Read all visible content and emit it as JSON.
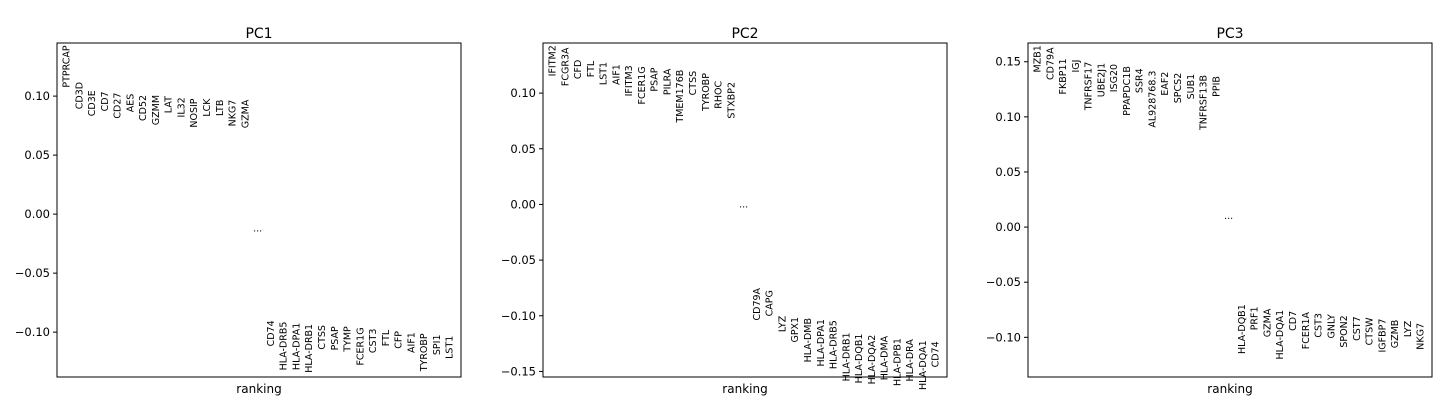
{
  "chart_data": [
    {
      "type": "scatter",
      "title": "PC1",
      "xlabel": "ranking",
      "ylim": [
        -0.138,
        0.145
      ],
      "yticks": [
        "0.10",
        "0.05",
        "0.00",
        "−0.05",
        "−0.10"
      ],
      "ytick_values": [
        0.1,
        0.05,
        0.0,
        -0.05,
        -0.1
      ],
      "gap_label": "...",
      "gap_value": -0.012,
      "top_genes": [
        {
          "label": "PTPRCAP",
          "value": 0.143
        },
        {
          "label": "CD3D",
          "value": 0.112
        },
        {
          "label": "CD3E",
          "value": 0.105
        },
        {
          "label": "CD7",
          "value": 0.104
        },
        {
          "label": "CD27",
          "value": 0.103
        },
        {
          "label": "AES",
          "value": 0.102
        },
        {
          "label": "CD52",
          "value": 0.101
        },
        {
          "label": "GZMM",
          "value": 0.101
        },
        {
          "label": "LAT",
          "value": 0.1
        },
        {
          "label": "IL32",
          "value": 0.099
        },
        {
          "label": "NOSIP",
          "value": 0.098
        },
        {
          "label": "LCK",
          "value": 0.098
        },
        {
          "label": "LTB",
          "value": 0.097
        },
        {
          "label": "NKG7",
          "value": 0.097
        },
        {
          "label": "GZMA",
          "value": 0.097
        }
      ],
      "bottom_genes": [
        {
          "label": "CD74",
          "value": -0.09
        },
        {
          "label": "HLA-DRB5",
          "value": -0.091
        },
        {
          "label": "HLA-DPA1",
          "value": -0.092
        },
        {
          "label": "HLA-DRB1",
          "value": -0.093
        },
        {
          "label": "CTSS",
          "value": -0.094
        },
        {
          "label": "PSAP",
          "value": -0.095
        },
        {
          "label": "TYMP",
          "value": -0.095
        },
        {
          "label": "FCER1G",
          "value": -0.096
        },
        {
          "label": "CST3",
          "value": -0.097
        },
        {
          "label": "FTL",
          "value": -0.098
        },
        {
          "label": "CFP",
          "value": -0.099
        },
        {
          "label": "AIF1",
          "value": -0.1
        },
        {
          "label": "TYROBP",
          "value": -0.101
        },
        {
          "label": "SPI1",
          "value": -0.102
        },
        {
          "label": "LST1",
          "value": -0.103
        }
      ]
    },
    {
      "type": "scatter",
      "title": "PC2",
      "xlabel": "ranking",
      "ylim": [
        -0.155,
        0.145
      ],
      "yticks": [
        "0.10",
        "0.05",
        "0.00",
        "−0.05",
        "−0.10",
        "−0.15"
      ],
      "ytick_values": [
        0.1,
        0.05,
        0.0,
        -0.05,
        -0.1,
        -0.15
      ],
      "gap_label": "...",
      "gap_value": 0.0,
      "top_genes": [
        {
          "label": "IFITM2",
          "value": 0.143
        },
        {
          "label": "FCGR3A",
          "value": 0.141
        },
        {
          "label": "CFD",
          "value": 0.13
        },
        {
          "label": "FTL",
          "value": 0.129
        },
        {
          "label": "LST1",
          "value": 0.128
        },
        {
          "label": "AIF1",
          "value": 0.126
        },
        {
          "label": "IFITM3",
          "value": 0.125
        },
        {
          "label": "FCER1G",
          "value": 0.124
        },
        {
          "label": "PSAP",
          "value": 0.123
        },
        {
          "label": "PILRA",
          "value": 0.122
        },
        {
          "label": "TMEM176B",
          "value": 0.121
        },
        {
          "label": "CTSS",
          "value": 0.12
        },
        {
          "label": "TYROBP",
          "value": 0.118
        },
        {
          "label": "RHOC",
          "value": 0.111
        },
        {
          "label": "STXBP2",
          "value": 0.11
        }
      ],
      "bottom_genes": [
        {
          "label": "CD79A",
          "value": -0.075
        },
        {
          "label": "CAPG",
          "value": -0.077
        },
        {
          "label": "LYZ",
          "value": -0.1
        },
        {
          "label": "GPX1",
          "value": -0.101
        },
        {
          "label": "HLA-DMB",
          "value": -0.102
        },
        {
          "label": "HLA-DPA1",
          "value": -0.103
        },
        {
          "label": "HLA-DRB5",
          "value": -0.104
        },
        {
          "label": "HLA-DRB1",
          "value": -0.115
        },
        {
          "label": "HLA-DQB1",
          "value": -0.116
        },
        {
          "label": "HLA-DQA2",
          "value": -0.117
        },
        {
          "label": "HLA-DMA",
          "value": -0.118
        },
        {
          "label": "HLA-DPB1",
          "value": -0.12
        },
        {
          "label": "HLA-DRA",
          "value": -0.121
        },
        {
          "label": "HLA-DQA1",
          "value": -0.122
        },
        {
          "label": "CD74",
          "value": -0.123
        }
      ]
    },
    {
      "type": "scatter",
      "title": "PC3",
      "xlabel": "ranking",
      "ylim": [
        -0.136,
        0.167
      ],
      "yticks": [
        "0.15",
        "0.10",
        "0.05",
        "0.00",
        "−0.05",
        "−0.10"
      ],
      "ytick_values": [
        0.15,
        0.1,
        0.05,
        0.0,
        -0.05,
        -0.1
      ],
      "gap_label": "...",
      "gap_value": 0.01,
      "top_genes": [
        {
          "label": "MZB1",
          "value": 0.165
        },
        {
          "label": "CD79A",
          "value": 0.163
        },
        {
          "label": "FKBP11",
          "value": 0.153
        },
        {
          "label": "IGJ",
          "value": 0.152
        },
        {
          "label": "TNFRSF17",
          "value": 0.15
        },
        {
          "label": "UBE2J1",
          "value": 0.149
        },
        {
          "label": "ISG20",
          "value": 0.148
        },
        {
          "label": "PPAPDC1B",
          "value": 0.146
        },
        {
          "label": "SSR4",
          "value": 0.144
        },
        {
          "label": "AL928768.3",
          "value": 0.142
        },
        {
          "label": "EAF2",
          "value": 0.141
        },
        {
          "label": "SPCS2",
          "value": 0.14
        },
        {
          "label": "SUB1",
          "value": 0.139
        },
        {
          "label": "TNFRSF13B",
          "value": 0.138
        },
        {
          "label": "PPIB",
          "value": 0.137
        }
      ],
      "bottom_genes": [
        {
          "label": "HLA-DQB1",
          "value": -0.07
        },
        {
          "label": "PRF1",
          "value": -0.072
        },
        {
          "label": "GZMA",
          "value": -0.074
        },
        {
          "label": "HLA-DQA1",
          "value": -0.075
        },
        {
          "label": "CD7",
          "value": -0.076
        },
        {
          "label": "FCER1A",
          "value": -0.077
        },
        {
          "label": "CST3",
          "value": -0.078
        },
        {
          "label": "GNLY",
          "value": -0.079
        },
        {
          "label": "SPON2",
          "value": -0.08
        },
        {
          "label": "CST7",
          "value": -0.081
        },
        {
          "label": "CTSW",
          "value": -0.082
        },
        {
          "label": "IGFBP7",
          "value": -0.083
        },
        {
          "label": "GZMB",
          "value": -0.084
        },
        {
          "label": "LYZ",
          "value": -0.085
        },
        {
          "label": "NKG7",
          "value": -0.087
        }
      ]
    }
  ]
}
